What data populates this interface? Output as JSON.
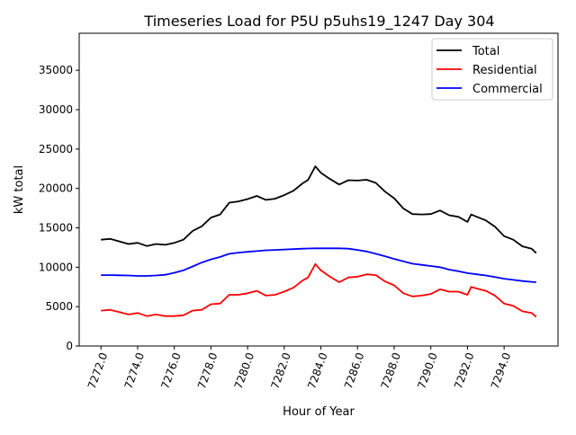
{
  "chart_data": {
    "type": "line",
    "title": "Timeseries Load for P5U p5uhs19_1247  Day 304",
    "xlabel": "Hour of Year",
    "ylabel": "kW total",
    "xlim": [
      7270.81,
      7296.94
    ],
    "ylim": [
      0,
      39700
    ],
    "grid": false,
    "legend_placement": "top-right",
    "xticks": [
      7272,
      7274,
      7276,
      7278,
      7280,
      7282,
      7284,
      7286,
      7288,
      7290,
      7292,
      7294
    ],
    "xtick_labels": [
      "7272.0",
      "7274.0",
      "7276.0",
      "7278.0",
      "7280.0",
      "7282.0",
      "7284.0",
      "7286.0",
      "7288.0",
      "7290.0",
      "7292.0",
      "7294.0"
    ],
    "yticks": [
      0,
      5000,
      10000,
      15000,
      20000,
      25000,
      30000,
      35000
    ],
    "ytick_labels": [
      "0",
      "5000",
      "10000",
      "15000",
      "20000",
      "25000",
      "30000",
      "35000"
    ],
    "x": [
      7272,
      7272.5,
      7273,
      7273.5,
      7274,
      7274.5,
      7275,
      7275.5,
      7276,
      7276.5,
      7277,
      7277.5,
      7278,
      7278.5,
      7279,
      7279.5,
      7280,
      7280.5,
      7281,
      7281.5,
      7282,
      7282.5,
      7283,
      7283.3,
      7283.7,
      7284,
      7284.5,
      7285,
      7285.5,
      7286,
      7286.5,
      7287,
      7287.5,
      7288,
      7288.5,
      7289,
      7289.5,
      7290,
      7290.5,
      7291,
      7291.5,
      7292,
      7292.2,
      7292.5,
      7293,
      7293.5,
      7294,
      7294.5,
      7295,
      7295.5,
      7295.75
    ],
    "series": [
      {
        "name": "Total",
        "color": "#000000",
        "values": [
          13500,
          13600,
          13280,
          12950,
          13100,
          12700,
          12950,
          12850,
          13100,
          13500,
          14600,
          15200,
          16300,
          16700,
          18200,
          18350,
          18650,
          19050,
          18550,
          18700,
          19150,
          19700,
          20650,
          21080,
          22800,
          22000,
          21200,
          20500,
          21050,
          21000,
          21100,
          20700,
          19600,
          18750,
          17450,
          16750,
          16700,
          16750,
          17200,
          16600,
          16400,
          15750,
          16700,
          16400,
          15950,
          15150,
          13950,
          13500,
          12650,
          12350,
          11800
        ]
      },
      {
        "name": "Residential",
        "color": "#ff0000",
        "values": [
          4500,
          4600,
          4300,
          4000,
          4200,
          3800,
          4000,
          3800,
          3800,
          3900,
          4500,
          4600,
          5300,
          5400,
          6500,
          6500,
          6700,
          7000,
          6400,
          6500,
          6900,
          7400,
          8300,
          8700,
          10400,
          9600,
          8800,
          8100,
          8700,
          8800,
          9100,
          9000,
          8200,
          7700,
          6700,
          6300,
          6400,
          6600,
          7200,
          6900,
          6900,
          6500,
          7500,
          7300,
          7000,
          6400,
          5400,
          5100,
          4400,
          4200,
          3700
        ]
      },
      {
        "name": "Commercial",
        "color": "#0000ff",
        "values": [
          9000,
          9000,
          8980,
          8950,
          8900,
          8900,
          8950,
          9050,
          9300,
          9600,
          10100,
          10600,
          11000,
          11300,
          11700,
          11850,
          11950,
          12050,
          12150,
          12200,
          12250,
          12300,
          12350,
          12380,
          12400,
          12400,
          12400,
          12400,
          12350,
          12200,
          12000,
          11700,
          11400,
          11050,
          10750,
          10450,
          10300,
          10150,
          10000,
          9700,
          9500,
          9250,
          9200,
          9100,
          8950,
          8750,
          8550,
          8400,
          8250,
          8150,
          8100
        ]
      }
    ]
  }
}
